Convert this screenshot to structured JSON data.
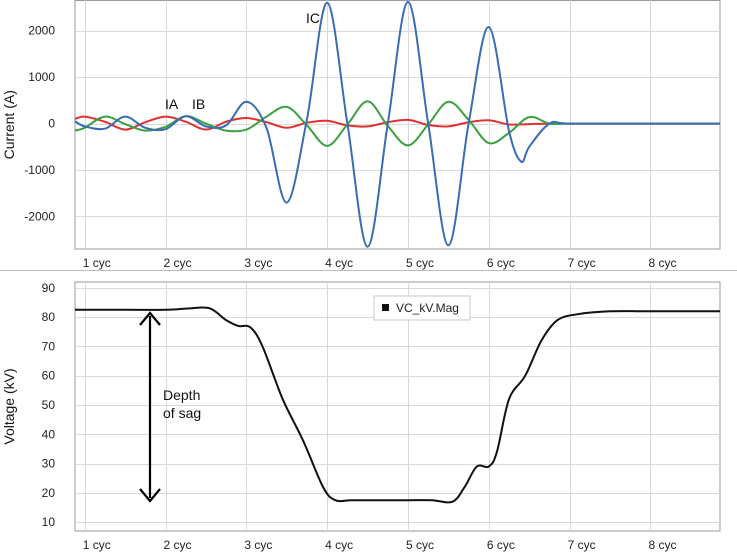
{
  "chart_data": [
    {
      "type": "line",
      "ylabel": "Current (A)",
      "ylim": [
        -2700,
        2650
      ],
      "yticks": [
        2000,
        1000,
        0,
        -1000,
        -2000
      ],
      "xlim": [
        0.88,
        8.86
      ],
      "xticks": [
        {
          "v": 1,
          "label": "1 cyc"
        },
        {
          "v": 2,
          "label": "2 cyc"
        },
        {
          "v": 3,
          "label": "3 cyc"
        },
        {
          "v": 4,
          "label": "4 cyc"
        },
        {
          "v": 5,
          "label": "5 cyc"
        },
        {
          "v": 6,
          "label": "6 cyc"
        },
        {
          "v": 7,
          "label": "7 cyc"
        },
        {
          "v": 8,
          "label": "8 cyc"
        }
      ],
      "grid": true,
      "series": [
        {
          "name": "IA",
          "color": "#e03030",
          "x": [
            0.88,
            1.0,
            1.25,
            1.5,
            1.75,
            2.0,
            2.25,
            2.5,
            2.75,
            3.0,
            3.25,
            3.5,
            3.75,
            4.0,
            4.25,
            4.5,
            4.75,
            5.0,
            5.25,
            5.5,
            5.75,
            6.0,
            6.25,
            6.5,
            6.75,
            7.0,
            8.0,
            8.86
          ],
          "y": [
            100,
            150,
            40,
            -130,
            30,
            150,
            40,
            -130,
            40,
            120,
            30,
            -90,
            20,
            60,
            -40,
            -60,
            30,
            80,
            -30,
            -60,
            30,
            70,
            -20,
            -10,
            0,
            0,
            0,
            0
          ]
        },
        {
          "name": "IB",
          "color": "#3aa040",
          "x": [
            0.88,
            1.0,
            1.25,
            1.5,
            1.75,
            2.0,
            2.25,
            2.5,
            2.75,
            3.0,
            3.25,
            3.5,
            3.75,
            4.0,
            4.25,
            4.5,
            4.75,
            5.0,
            5.25,
            5.5,
            5.75,
            6.0,
            6.25,
            6.5,
            6.75,
            7.0,
            8.0,
            8.86
          ],
          "y": [
            -150,
            -90,
            150,
            -10,
            -150,
            -70,
            160,
            0,
            -150,
            -130,
            150,
            360,
            -40,
            -480,
            -20,
            480,
            -50,
            -470,
            -20,
            470,
            80,
            -420,
            -200,
            140,
            0,
            0,
            0,
            0
          ]
        },
        {
          "name": "IC",
          "color": "#3a6cb4",
          "x": [
            0.88,
            1.0,
            1.25,
            1.5,
            1.75,
            2.0,
            2.25,
            2.5,
            2.75,
            3.0,
            3.25,
            3.5,
            3.75,
            4.0,
            4.25,
            4.5,
            4.75,
            5.0,
            5.25,
            5.5,
            5.75,
            6.0,
            6.25,
            6.4,
            6.5,
            6.75,
            7.0,
            8.0,
            8.86
          ],
          "y": [
            50,
            -60,
            -110,
            150,
            -90,
            -120,
            160,
            -60,
            -40,
            470,
            -100,
            -1700,
            100,
            2600,
            0,
            -2650,
            0,
            2620,
            0,
            -2620,
            0,
            2080,
            -160,
            -820,
            -500,
            0,
            0,
            0,
            0
          ]
        }
      ],
      "annotations": [
        "IA",
        "IB",
        "IC"
      ]
    },
    {
      "type": "line",
      "ylabel": "Voltage (kV)",
      "ylim": [
        7,
        92
      ],
      "yticks": [
        90,
        80,
        70,
        60,
        50,
        40,
        30,
        20,
        10
      ],
      "xlim": [
        0.88,
        8.86
      ],
      "xticks": [
        {
          "v": 1,
          "label": "1 cyc"
        },
        {
          "v": 2,
          "label": "2 cyc"
        },
        {
          "v": 3,
          "label": "3 cyc"
        },
        {
          "v": 4,
          "label": "4 cyc"
        },
        {
          "v": 5,
          "label": "5 cyc"
        },
        {
          "v": 6,
          "label": "6 cyc"
        },
        {
          "v": 7,
          "label": "7 cyc"
        },
        {
          "v": 8,
          "label": "8 cyc"
        }
      ],
      "grid": true,
      "legend": "top-center",
      "series": [
        {
          "name": "VC_kV.Mag",
          "color": "#111111",
          "x": [
            0.88,
            1.5,
            2.0,
            2.3,
            2.55,
            2.75,
            2.9,
            3.05,
            3.2,
            3.45,
            3.7,
            3.95,
            4.1,
            4.3,
            4.6,
            5.0,
            5.3,
            5.55,
            5.7,
            5.85,
            6.0,
            6.1,
            6.25,
            6.45,
            6.65,
            6.85,
            7.1,
            7.5,
            8.0,
            8.86
          ],
          "y": [
            82.5,
            82.5,
            82.5,
            83,
            83,
            79,
            77,
            76.5,
            70,
            52,
            38,
            22,
            17.5,
            17.5,
            17.5,
            17.5,
            17.5,
            17,
            22,
            29,
            29,
            34,
            52,
            60,
            72,
            79,
            81,
            82,
            82,
            82
          ]
        }
      ],
      "annotations": [
        "Depth",
        "of sag"
      ]
    }
  ]
}
